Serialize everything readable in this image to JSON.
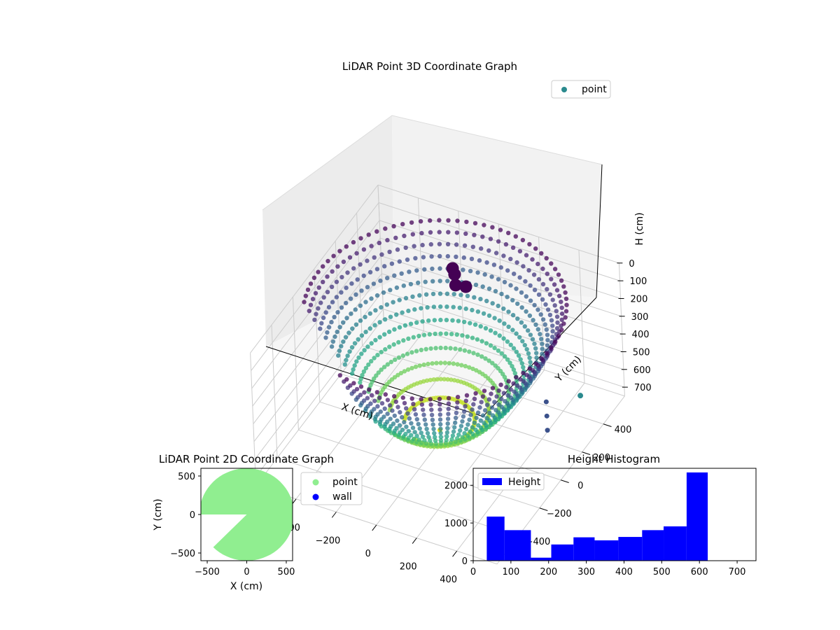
{
  "chart_data": [
    {
      "type": "scatter",
      "projection": "3d",
      "title": "LiDAR Point 3D Coordinate Graph",
      "xlabel": "X (cm)",
      "ylabel": "Y (cm)",
      "zlabel": "H (cm)",
      "xlim": [
        -600,
        600
      ],
      "ylim": [
        -600,
        600
      ],
      "zlim": [
        750,
        0
      ],
      "zaxis_inverted": true,
      "x_ticks": [
        "−400",
        "−200",
        "0",
        "200",
        "400"
      ],
      "y_ticks": [
        "−400",
        "−200",
        "0",
        "200",
        "400"
      ],
      "z_ticks": [
        "0",
        "100",
        "200",
        "300",
        "400",
        "500",
        "600",
        "700"
      ],
      "colormap": "viridis",
      "grid": true,
      "legend": {
        "placement": "top-right",
        "entries": [
          {
            "label": "point",
            "color": "#2a8a8e"
          }
        ]
      },
      "surface": {
        "description_free": true,
        "radius_cm": 580,
        "depth_cm": 700,
        "missing_sector_deg": [
          200,
          250
        ]
      },
      "extra_points": [
        {
          "x": 450,
          "y": 470,
          "h": 700
        }
      ]
    },
    {
      "type": "scatter",
      "title": "LiDAR Point 2D Coordinate Graph",
      "xlabel": "X (cm)",
      "ylabel": "Y (cm)",
      "xlim": [
        -580,
        580
      ],
      "ylim": [
        -600,
        600
      ],
      "x_ticks": [
        -500,
        0,
        500
      ],
      "y_ticks": [
        -500,
        0,
        500
      ],
      "x_tick_labels": [
        "−500",
        "0",
        "500"
      ],
      "y_tick_labels": [
        "−500",
        "0",
        "500"
      ],
      "legend": {
        "placement": "outside-right",
        "entries": [
          {
            "label": "point",
            "color": "#90ee90"
          },
          {
            "label": "wall",
            "color": "#0000ff"
          }
        ]
      },
      "region": {
        "radius_cm": 600,
        "missing_sector_deg": [
          180,
          225
        ],
        "color": "#90ee90"
      }
    },
    {
      "type": "bar",
      "subtype": "histogram",
      "title": "Height Histogram",
      "xlim": [
        0,
        750
      ],
      "ylim": [
        0,
        2450
      ],
      "x_ticks": [
        0,
        100,
        200,
        300,
        400,
        500,
        600,
        700
      ],
      "y_ticks": [
        0,
        1000,
        2000
      ],
      "bins": [
        {
          "start": 36,
          "end": 83,
          "count": 1170
        },
        {
          "start": 83,
          "end": 153,
          "count": 810
        },
        {
          "start": 153,
          "end": 207,
          "count": 80
        },
        {
          "start": 207,
          "end": 266,
          "count": 430
        },
        {
          "start": 266,
          "end": 322,
          "count": 620
        },
        {
          "start": 322,
          "end": 385,
          "count": 540
        },
        {
          "start": 385,
          "end": 448,
          "count": 630
        },
        {
          "start": 448,
          "end": 505,
          "count": 810
        },
        {
          "start": 505,
          "end": 566,
          "count": 910
        },
        {
          "start": 566,
          "end": 622,
          "count": 2340
        }
      ],
      "bar_color": "#0000ff",
      "legend": {
        "placement": "top-left",
        "entries": [
          {
            "label": "Height",
            "color": "#0000ff"
          }
        ]
      }
    }
  ]
}
